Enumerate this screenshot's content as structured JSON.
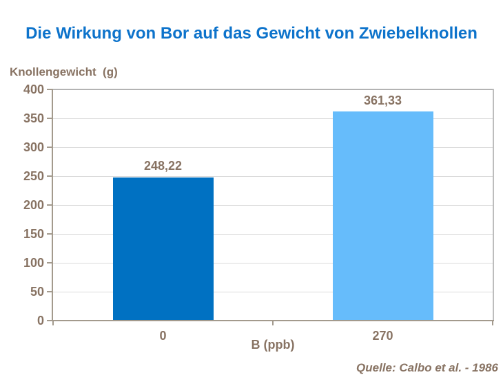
{
  "title": {
    "text": "Die Wirkung von Bor auf das Gewicht von Zwiebelknollen",
    "color": "#0d73cb"
  },
  "source_note": "Quelle: Calbo et al. - 1986",
  "colors": {
    "title_blue": "#0d73cb",
    "axis_text_brown": "#887363",
    "bar_dark_blue": "#0071c2",
    "bar_light_blue": "#66bcfb",
    "gridline_gray": "#d9d9d9",
    "axis_line": "#a39a8d"
  },
  "chart_data": {
    "type": "bar",
    "title": "Die Wirkung von Bor auf das Gewicht von Zwiebelknollen",
    "ylabel": "Knollengewicht  (g)",
    "xlabel": "B (ppb)",
    "categories": [
      "0",
      "270"
    ],
    "values": [
      248.22,
      361.33
    ],
    "value_labels": [
      "248,22",
      "361,33"
    ],
    "bar_colors": [
      "#0071c2",
      "#66bcfb"
    ],
    "ylim": [
      0,
      400
    ],
    "yticks": [
      400,
      350,
      300,
      250,
      200,
      150,
      100,
      50,
      0
    ],
    "grid": "horizontal",
    "legend": "none"
  }
}
